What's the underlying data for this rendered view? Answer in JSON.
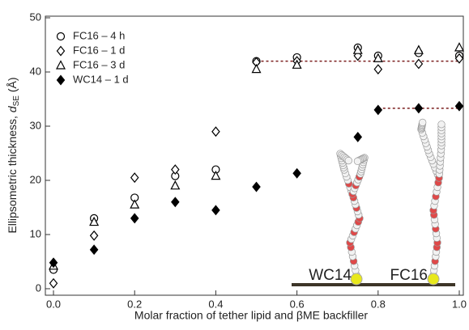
{
  "chart_data": {
    "type": "scatter",
    "x_label": "Molar fraction of tether lipid and βME backfiller",
    "y_label": [
      "Ellipsometric thickness, ",
      "d",
      "SE",
      " (Å)"
    ],
    "x": [
      0.0,
      0.1,
      0.2,
      0.3,
      0.4,
      0.5,
      0.6,
      0.75,
      0.8,
      0.9,
      1.0
    ],
    "series": [
      {
        "name": "FC16 – 4 h",
        "marker": "circle",
        "color": "#000000",
        "values": [
          3.5,
          13,
          16.8,
          20.8,
          22,
          42,
          42.7,
          44.5,
          43,
          43.5,
          43
        ]
      },
      {
        "name": "FC16 – 1 d",
        "marker": "diamond",
        "color": "#000000",
        "values": [
          1,
          9.8,
          20.5,
          22,
          29,
          41.8,
          42,
          43,
          40.5,
          41.5,
          42.5
        ]
      },
      {
        "name": "FC16 – 3 d",
        "marker": "triangle",
        "color": "#000000",
        "values": [
          4.2,
          12.3,
          15.5,
          19,
          20.8,
          40.5,
          41.3,
          44,
          42.5,
          44,
          44.5
        ]
      },
      {
        "name": "WC14 – 1 d",
        "marker": "diamond-filled",
        "color": "#000000",
        "values": [
          4.8,
          7.2,
          13,
          16,
          14.5,
          18.8,
          21.3,
          28,
          33,
          33.3,
          33.7
        ]
      }
    ],
    "reference_lines": [
      {
        "x": [
          0.5,
          1.0
        ],
        "y": 42
      },
      {
        "x": [
          0.8,
          1.0
        ],
        "y": 33.3
      }
    ],
    "inset_labels": [
      "WC14",
      "FC16"
    ],
    "xlim": [
      -0.02,
      1.01
    ],
    "ylim": [
      -1.2,
      50.3
    ],
    "xticks": [
      {
        "value": 0,
        "label": "0.0"
      },
      0.2,
      0.4,
      0.6,
      0.8,
      {
        "value": 1,
        "label": "1.0"
      }
    ],
    "yticks": [
      0,
      10,
      20,
      30,
      40,
      50
    ],
    "legend": "upper left"
  }
}
